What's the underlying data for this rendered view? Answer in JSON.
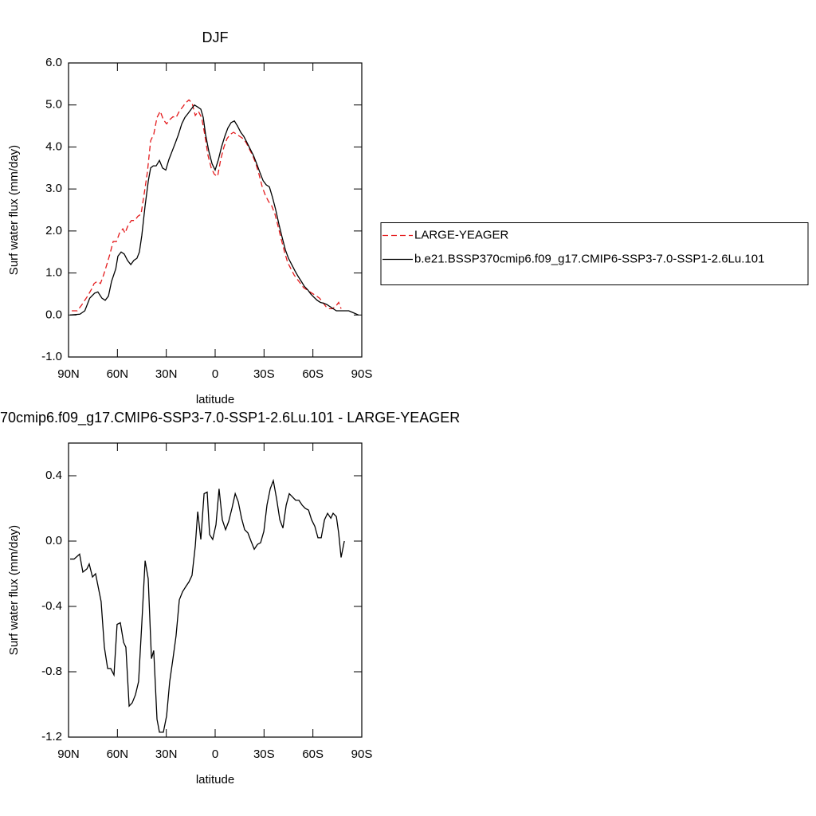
{
  "chart_data": [
    {
      "type": "line",
      "title": "DJF",
      "xlabel": "latitude",
      "ylabel": "Surf water flux (mm/day)",
      "xlim": [
        90,
        -90
      ],
      "xticks": [
        {
          "value": 90,
          "label": "90N"
        },
        {
          "value": 60,
          "label": "60N"
        },
        {
          "value": 30,
          "label": "30N"
        },
        0,
        {
          "value": -30,
          "label": "30S"
        },
        {
          "value": -60,
          "label": "60S"
        },
        {
          "value": -90,
          "label": "90S"
        }
      ],
      "ylim": [
        -1,
        6
      ],
      "yticks": [
        {
          "value": -1,
          "label": "-1.0"
        },
        {
          "value": 0,
          "label": "0.0"
        },
        {
          "value": 1,
          "label": "1.0"
        },
        {
          "value": 2,
          "label": "2.0"
        },
        {
          "value": 3,
          "label": "3.0"
        },
        {
          "value": 4,
          "label": "4.0"
        },
        {
          "value": 5,
          "label": "5.0"
        },
        {
          "value": 6,
          "label": "6.0"
        }
      ],
      "legend": "right",
      "series": [
        {
          "name": "LARGE-YEAGER",
          "color": "#e41a1c",
          "line_style": "dashed",
          "x": [
            88,
            84.6,
            81.7,
            78.3,
            75.8,
            74.3,
            72.4,
            70.4,
            68.5,
            66.5,
            64.6,
            62.6,
            60.6,
            58.7,
            56.7,
            55.3,
            53.3,
            51.4,
            49.4,
            47.4,
            45.5,
            43.5,
            41.6,
            39.6,
            37.7,
            35.7,
            33.7,
            31.8,
            29.8,
            27.9,
            25.9,
            24,
            22,
            20,
            18.1,
            16.1,
            14.2,
            12.2,
            10.3,
            8.3,
            6.4,
            4.4,
            2.4,
            0.5,
            -1.5,
            -3.4,
            -5.4,
            -7.3,
            -9.3,
            -11.3,
            -13.2,
            -15.2,
            -17.1,
            -19.1,
            -21,
            -23,
            -25,
            -26.9,
            -28.9,
            -30.8,
            -32.8,
            -34.7,
            -36.7,
            -38.7,
            -40.6,
            -42.6,
            -44.5,
            -46.5,
            -48.5,
            -50.4,
            -52.4,
            -54.3,
            -56.3,
            -58.2,
            -60.2,
            -62.2,
            -64.1,
            -66.1,
            -68,
            -70,
            -71.9,
            -73.9,
            -75.8,
            -77.3
          ],
          "values": [
            0.1,
            0.1,
            0.25,
            0.45,
            0.62,
            0.75,
            0.8,
            0.75,
            0.95,
            1.2,
            1.45,
            1.75,
            1.75,
            1.95,
            2.05,
            1.95,
            2.15,
            2.25,
            2.25,
            2.35,
            2.4,
            2.9,
            3.4,
            4.15,
            4.3,
            4.7,
            4.85,
            4.65,
            4.55,
            4.65,
            4.72,
            4.7,
            4.85,
            4.95,
            5.05,
            5.12,
            5.05,
            4.75,
            4.85,
            4.7,
            4.3,
            3.8,
            3.5,
            3.35,
            3.3,
            3.7,
            4.0,
            4.2,
            4.3,
            4.35,
            4.3,
            4.25,
            4.2,
            4.1,
            3.95,
            3.8,
            3.6,
            3.35,
            3.05,
            2.85,
            2.7,
            2.6,
            2.4,
            2.1,
            1.8,
            1.5,
            1.25,
            1.1,
            0.95,
            0.85,
            0.75,
            0.65,
            0.6,
            0.55,
            0.5,
            0.45,
            0.4,
            0.3,
            0.2,
            0.15,
            0.15,
            0.2,
            0.3,
            0.15
          ]
        },
        {
          "name": "b.e21.BSSP370cmip6.f09_g17.CMIP6-SSP3-7.0-SSP1-2.6Lu.101",
          "color": "#000000",
          "line_style": "solid",
          "x": [
            89,
            83,
            80,
            77,
            74,
            72,
            69.5,
            67.5,
            65.5,
            63.6,
            61,
            59.7,
            57.7,
            55.8,
            53.8,
            51.8,
            49.9,
            48,
            46.5,
            45,
            43,
            41,
            39.6,
            38,
            36.2,
            34.2,
            32.3,
            30.3,
            28.4,
            26.4,
            24.4,
            22.5,
            20.5,
            18.6,
            16.6,
            14.7,
            12.7,
            10.7,
            8.8,
            7.3,
            5.9,
            3.9,
            1.9,
            0,
            -2,
            -3.9,
            -5.9,
            -7.8,
            -9.8,
            -11.8,
            -13.7,
            -15.7,
            -17.6,
            -19.6,
            -21.5,
            -23.5,
            -25.5,
            -27.4,
            -29.4,
            -31.3,
            -33.3,
            -35.2,
            -37.2,
            -39.2,
            -41.1,
            -43.1,
            -45,
            -47,
            -49,
            -50.9,
            -52.9,
            -54.8,
            -56.8,
            -58.7,
            -60.7,
            -62.6,
            -64.6,
            -66.5,
            -68.5,
            -70.5,
            -72.4,
            -74.4,
            -76.3,
            -79,
            -82,
            -85,
            -88
          ],
          "values": [
            0.0,
            0.02,
            0.1,
            0.4,
            0.52,
            0.55,
            0.4,
            0.35,
            0.45,
            0.8,
            1.1,
            1.4,
            1.5,
            1.45,
            1.3,
            1.2,
            1.3,
            1.35,
            1.5,
            1.9,
            2.6,
            3.2,
            3.5,
            3.55,
            3.55,
            3.68,
            3.5,
            3.45,
            3.7,
            3.9,
            4.1,
            4.3,
            4.55,
            4.7,
            4.8,
            4.9,
            5.0,
            4.95,
            4.9,
            4.7,
            4.3,
            3.9,
            3.6,
            3.45,
            3.7,
            4.0,
            4.25,
            4.45,
            4.58,
            4.62,
            4.5,
            4.35,
            4.25,
            4.1,
            3.95,
            3.8,
            3.6,
            3.4,
            3.2,
            3.1,
            3.05,
            2.8,
            2.5,
            2.15,
            1.85,
            1.55,
            1.35,
            1.2,
            1.05,
            0.92,
            0.8,
            0.68,
            0.6,
            0.5,
            0.42,
            0.35,
            0.3,
            0.28,
            0.25,
            0.2,
            0.15,
            0.1,
            0.1,
            0.1,
            0.1,
            0.05,
            0.0
          ]
        }
      ]
    },
    {
      "type": "line",
      "title": "70cmip6.f09_g17.CMIP6-SSP3-7.0-SSP1-2.6Lu.101 - LARGE-YEAGER",
      "xlabel": "latitude",
      "ylabel": "Surf water flux (mm/day)",
      "xlim": [
        90,
        -90
      ],
      "xticks": [
        {
          "value": 90,
          "label": "90N"
        },
        {
          "value": 60,
          "label": "60N"
        },
        {
          "value": 30,
          "label": "30N"
        },
        0,
        {
          "value": -30,
          "label": "30S"
        },
        {
          "value": -60,
          "label": "60S"
        },
        {
          "value": -90,
          "label": "90S"
        }
      ],
      "ylim": [
        -1.2,
        0.6
      ],
      "yticks": [
        {
          "value": -1.2,
          "label": "-1.2"
        },
        {
          "value": -0.8,
          "label": "-0.8"
        },
        {
          "value": -0.4,
          "label": "-0.4"
        },
        {
          "value": 0,
          "label": "0.0"
        },
        {
          "value": 0.4,
          "label": "0.4"
        }
      ],
      "color": "#000000",
      "x": [
        89,
        86.6,
        83.2,
        81.2,
        78.7,
        77.3,
        75.3,
        73.4,
        70,
        68,
        66,
        64.1,
        62.1,
        60.2,
        58.2,
        56.2,
        54.8,
        52.8,
        50.9,
        48.9,
        47,
        45,
        43,
        41.1,
        39.1,
        37.7,
        35.7,
        34.2,
        31.8,
        29.8,
        27.9,
        25.9,
        24,
        22,
        20,
        18.1,
        16.1,
        14.2,
        12.2,
        10.7,
        8.8,
        6.8,
        4.9,
        3.4,
        1.5,
        -0.5,
        -2.4,
        -4.4,
        -6.4,
        -8.3,
        -10.3,
        -12.3,
        -14.2,
        -16.2,
        -18.1,
        -20.1,
        -22,
        -24,
        -26,
        -27.9,
        -29.9,
        -31.8,
        -33.8,
        -35.7,
        -37.7,
        -39.7,
        -41.6,
        -43.6,
        -45.5,
        -47.5,
        -49.4,
        -51.4,
        -53.4,
        -55.3,
        -57.3,
        -59.2,
        -61.2,
        -63.1,
        -65.1,
        -67.1,
        -69,
        -71,
        -72.4,
        -74.4,
        -75.8,
        -77.3,
        -79.3
      ],
      "values": [
        -0.11,
        -0.11,
        -0.08,
        -0.19,
        -0.17,
        -0.14,
        -0.22,
        -0.2,
        -0.37,
        -0.65,
        -0.78,
        -0.78,
        -0.82,
        -0.51,
        -0.5,
        -0.62,
        -0.65,
        -1.01,
        -0.99,
        -0.94,
        -0.86,
        -0.5,
        -0.12,
        -0.23,
        -0.72,
        -0.67,
        -1.09,
        -1.17,
        -1.17,
        -1.07,
        -0.86,
        -0.72,
        -0.58,
        -0.36,
        -0.31,
        -0.28,
        -0.25,
        -0.21,
        -0.03,
        0.18,
        0.01,
        0.29,
        0.3,
        0.04,
        0.01,
        0.1,
        0.32,
        0.13,
        0.07,
        0.12,
        0.2,
        0.29,
        0.24,
        0.14,
        0.07,
        0.05,
        0.0,
        -0.05,
        -0.02,
        -0.01,
        0.06,
        0.22,
        0.32,
        0.37,
        0.26,
        0.13,
        0.08,
        0.22,
        0.29,
        0.27,
        0.25,
        0.25,
        0.22,
        0.2,
        0.19,
        0.13,
        0.09,
        0.02,
        0.02,
        0.13,
        0.17,
        0.14,
        0.17,
        0.15,
        0.05,
        -0.1,
        0.0
      ]
    }
  ]
}
